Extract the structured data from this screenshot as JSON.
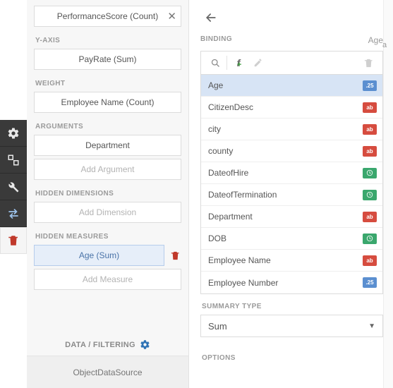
{
  "left": {
    "first_pill": "PerformanceScore (Count)",
    "yaxis_label": "Y-AXIS",
    "yaxis_value": "PayRate (Sum)",
    "weight_label": "WEIGHT",
    "weight_value": "Employee Name (Count)",
    "arguments_label": "ARGUMENTS",
    "arguments_value": "Department",
    "add_argument": "Add Argument",
    "hidden_dim_label": "HIDDEN DIMENSIONS",
    "add_dimension": "Add Dimension",
    "hidden_meas_label": "HIDDEN MEASURES",
    "hidden_meas_value": "Age (Sum)",
    "add_measure": "Add Measure",
    "data_filtering": "DATA / FILTERING",
    "datasource": "ObjectDataSource"
  },
  "right": {
    "binding_label": "BINDING",
    "current": "Age",
    "fields": [
      {
        "name": "Age",
        "type": "num",
        "selected": true
      },
      {
        "name": "CitizenDesc",
        "type": "text"
      },
      {
        "name": "city",
        "type": "text"
      },
      {
        "name": "county",
        "type": "text"
      },
      {
        "name": "DateofHire",
        "type": "date"
      },
      {
        "name": "DateofTermination",
        "type": "date"
      },
      {
        "name": "Department",
        "type": "text"
      },
      {
        "name": "DOB",
        "type": "date"
      },
      {
        "name": "Employee Name",
        "type": "text"
      },
      {
        "name": "Employee Number",
        "type": "num"
      }
    ],
    "summary_label": "SUMMARY TYPE",
    "summary_value": "Sum",
    "options_label": "OPTIONS"
  },
  "badges": {
    "num_text": ".25",
    "text_text": "ab"
  },
  "colors": {
    "num": "#5b8fd0",
    "text": "#d64c3f",
    "date": "#3aa76d",
    "selected_row": "#d7e4f5"
  }
}
